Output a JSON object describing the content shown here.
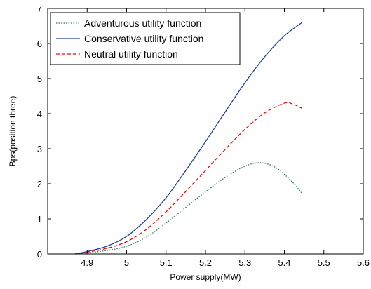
{
  "chart_data": {
    "type": "line",
    "title": "",
    "xlabel": "Power supply(MW)",
    "ylabel": "Bps(position three)",
    "xlim": [
      4.8,
      5.6
    ],
    "ylim": [
      0,
      7
    ],
    "x_ticks": [
      4.9,
      5.0,
      5.1,
      5.2,
      5.3,
      5.4,
      5.5,
      5.6
    ],
    "x_tick_labels": [
      "4.9",
      "5",
      "5.1",
      "5.2",
      "5.3",
      "5.4",
      "5.5",
      "5.6"
    ],
    "y_ticks": [
      0,
      1,
      2,
      3,
      4,
      5,
      6,
      7
    ],
    "y_tick_labels": [
      "0",
      "1",
      "2",
      "3",
      "4",
      "5",
      "6",
      "7"
    ],
    "grid": false,
    "legend_position": "top-left",
    "series": [
      {
        "name": "Adventurous utility function",
        "color": "#2e7d4f",
        "line_style": "dotted",
        "x": [
          4.87,
          4.9,
          4.95,
          5.0,
          5.05,
          5.1,
          5.15,
          5.2,
          5.25,
          5.3,
          5.34,
          5.38,
          5.42,
          5.445
        ],
        "y": [
          0.0,
          0.03,
          0.1,
          0.22,
          0.48,
          0.88,
          1.33,
          1.77,
          2.18,
          2.5,
          2.6,
          2.45,
          2.05,
          1.72
        ]
      },
      {
        "name": "Conservative utility function",
        "color": "#1f3f9f",
        "line_style": "solid",
        "x": [
          4.87,
          4.9,
          4.95,
          5.0,
          5.05,
          5.1,
          5.15,
          5.2,
          5.25,
          5.3,
          5.35,
          5.4,
          5.445
        ],
        "y": [
          0.0,
          0.07,
          0.22,
          0.5,
          0.98,
          1.6,
          2.38,
          3.2,
          4.05,
          4.88,
          5.62,
          6.22,
          6.6
        ]
      },
      {
        "name": "Neutral utility function",
        "color": "#ff0000",
        "line_style": "dashed",
        "x": [
          4.87,
          4.9,
          4.95,
          5.0,
          5.05,
          5.1,
          5.15,
          5.2,
          5.25,
          5.3,
          5.35,
          5.4,
          5.42,
          5.445
        ],
        "y": [
          0.0,
          0.05,
          0.16,
          0.35,
          0.7,
          1.2,
          1.78,
          2.38,
          2.98,
          3.55,
          4.02,
          4.3,
          4.28,
          4.15
        ]
      }
    ]
  }
}
